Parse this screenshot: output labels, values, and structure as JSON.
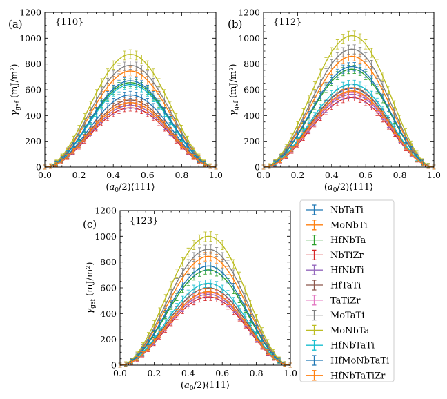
{
  "alloys": [
    "NbTaTi",
    "MoNbTi",
    "HfNbTa",
    "NbTiZr",
    "HfNbTi",
    "HfTaTi",
    "TaTiZr",
    "MoTaTi",
    "MoNbTa",
    "HfNbTaTi",
    "HfMoNbTaTi",
    "HfNbTaTiZr"
  ],
  "colors": [
    "#1f77b4",
    "#ff7f0e",
    "#2ca02c",
    "#d62728",
    "#9467bd",
    "#8c564b",
    "#e377c2",
    "#7f7f7f",
    "#bcbd22",
    "#17becf",
    "#1f77b4",
    "#ff7f0e"
  ],
  "legend": {
    "entries": [
      "NbTaTi",
      "MoNbTi",
      "HfNbTa",
      "NbTiZr",
      "HfNbTi",
      "HfTaTi",
      "TaTiZr",
      "MoTaTi",
      "MoNbTa",
      "HfNbTaTi",
      "HfMoNbTaTi",
      "HfNbTaTiZr"
    ],
    "placement": "lower-right"
  },
  "chart_data": [
    {
      "type": "line",
      "panel": "(a)",
      "facet": "{110}",
      "xlabel": "(a0/2)⟨111⟩",
      "ylabel": "γgsf (mJ/m²)",
      "xlim": [
        0.0,
        1.0
      ],
      "ylim": [
        0,
        1200
      ],
      "xticks": [
        "0.0",
        "0.2",
        "0.4",
        "0.6",
        "0.8",
        "1.0"
      ],
      "yticks": [
        "0",
        "200",
        "400",
        "600",
        "800",
        "1000",
        "1200"
      ],
      "peak_x": 0.5,
      "series": [
        {
          "name": "NbTaTi",
          "peak": 560
        },
        {
          "name": "MoNbTi",
          "peak": 745
        },
        {
          "name": "HfNbTa",
          "peak": 655
        },
        {
          "name": "NbTiZr",
          "peak": 460
        },
        {
          "name": "HfNbTi",
          "peak": 480
        },
        {
          "name": "HfTaTi",
          "peak": 520
        },
        {
          "name": "TaTiZr",
          "peak": 500
        },
        {
          "name": "MoTaTi",
          "peak": 790
        },
        {
          "name": "MoNbTa",
          "peak": 875
        },
        {
          "name": "HfNbTaTi",
          "peak": 640
        },
        {
          "name": "HfMoNbTaTi",
          "peak": 670
        },
        {
          "name": "HfNbTaTiZr",
          "peak": 500
        }
      ]
    },
    {
      "type": "line",
      "panel": "(b)",
      "facet": "{112}",
      "xlabel": "(a0/2)⟨111⟩",
      "ylabel": "γgsf (mJ/m²)",
      "xlim": [
        0.0,
        1.0
      ],
      "ylim": [
        0,
        1200
      ],
      "xticks": [
        "0.0",
        "0.2",
        "0.4",
        "0.6",
        "0.8",
        "1.0"
      ],
      "yticks": [
        "0",
        "200",
        "400",
        "600",
        "800",
        "1000",
        "1200"
      ],
      "peak_x": 0.52,
      "series": [
        {
          "name": "NbTaTi",
          "peak": 610
        },
        {
          "name": "MoNbTi",
          "peak": 860
        },
        {
          "name": "HfNbTa",
          "peak": 760
        },
        {
          "name": "NbTiZr",
          "peak": 540
        },
        {
          "name": "HfNbTi",
          "peak": 565
        },
        {
          "name": "HfTaTi",
          "peak": 615
        },
        {
          "name": "TaTiZr",
          "peak": 580
        },
        {
          "name": "MoTaTi",
          "peak": 915
        },
        {
          "name": "MoNbTa",
          "peak": 1020
        },
        {
          "name": "HfNbTaTi",
          "peak": 645
        },
        {
          "name": "HfMoNbTaTi",
          "peak": 780
        },
        {
          "name": "HfNbTaTiZr",
          "peak": 590
        }
      ]
    },
    {
      "type": "line",
      "panel": "(c)",
      "facet": "{123}",
      "xlabel": "(a0/2)⟨111⟩",
      "ylabel": "γgsf (mJ/m²)",
      "xlim": [
        0.0,
        1.0
      ],
      "ylim": [
        0,
        1200
      ],
      "xticks": [
        "0.0",
        "0.2",
        "0.4",
        "0.6",
        "0.8",
        "1.0"
      ],
      "yticks": [
        "0",
        "200",
        "400",
        "600",
        "800",
        "1000",
        "1200"
      ],
      "peak_x": 0.52,
      "series": [
        {
          "name": "NbTaTi",
          "peak": 600
        },
        {
          "name": "MoNbTi",
          "peak": 845
        },
        {
          "name": "HfNbTa",
          "peak": 740
        },
        {
          "name": "NbTiZr",
          "peak": 530
        },
        {
          "name": "HfNbTi",
          "peak": 550
        },
        {
          "name": "HfTaTi",
          "peak": 600
        },
        {
          "name": "TaTiZr",
          "peak": 565
        },
        {
          "name": "MoTaTi",
          "peak": 900
        },
        {
          "name": "MoNbTa",
          "peak": 1000
        },
        {
          "name": "HfNbTaTi",
          "peak": 635
        },
        {
          "name": "HfMoNbTaTi",
          "peak": 770
        },
        {
          "name": "HfNbTaTiZr",
          "peak": 570
        }
      ]
    }
  ]
}
